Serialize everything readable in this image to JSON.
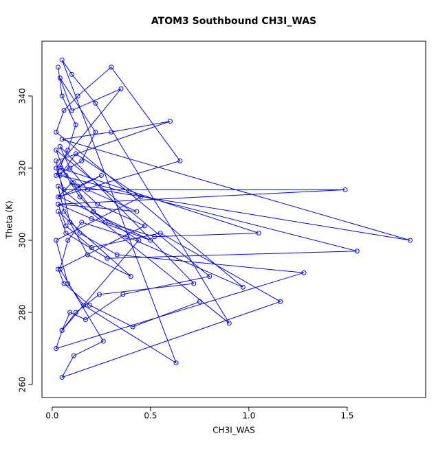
{
  "chart_data": {
    "type": "line",
    "title": "ATOM3 Southbound CH3I_WAS",
    "xlabel": "CH3I_WAS",
    "ylabel": "Theta (K)",
    "color": "#0000ff",
    "x": [
      0.03,
      0.05,
      0.12,
      0.08,
      0.02,
      0.15,
      0.22,
      0.04,
      0.1,
      0.35,
      0.02,
      0.06,
      1.49,
      0.03,
      0.2,
      0.5,
      0.04,
      0.25,
      0.13,
      1.82,
      0.05,
      0.3,
      0.6,
      0.02,
      0.09,
      0.18,
      0.4,
      0.03,
      0.07,
      0.28,
      1.55,
      0.04,
      0.12,
      0.45,
      0.02,
      0.08,
      0.16,
      0.63,
      0.05,
      0.1,
      0.22,
      0.9,
      0.03,
      0.06,
      0.14,
      0.33,
      1.28,
      0.02,
      0.05,
      0.12,
      0.24,
      0.72,
      0.04,
      0.09,
      0.18,
      0.43,
      0.03,
      0.07,
      0.2,
      0.55,
      1.16,
      0.05,
      0.11,
      0.26,
      0.04,
      0.08,
      0.15,
      0.38,
      0.97,
      0.02,
      0.06,
      0.13,
      0.3,
      0.65,
      0.03,
      0.1,
      0.21,
      0.44,
      0.05,
      0.09,
      0.17,
      0.36,
      0.8,
      0.02,
      0.07,
      0.14,
      0.27,
      0.52,
      1.05,
      0.04,
      0.11,
      0.23,
      0.47,
      0.03,
      0.06,
      0.19,
      0.41,
      0.75
    ],
    "values": [
      348,
      340,
      332,
      325,
      318,
      322,
      330,
      345,
      336,
      342,
      320,
      314,
      314,
      310,
      306,
      300,
      312,
      318,
      315,
      300,
      328,
      330,
      333,
      322,
      305,
      296,
      290,
      308,
      302,
      295,
      297,
      318,
      324,
      312,
      300,
      288,
      282,
      266,
      350,
      346,
      338,
      277,
      315,
      308,
      302,
      296,
      291,
      270,
      275,
      280,
      285,
      288,
      326,
      320,
      314,
      308,
      310,
      304,
      298,
      302,
      283,
      262,
      268,
      272,
      292,
      300,
      305,
      301,
      287,
      330,
      336,
      340,
      348,
      322,
      312,
      316,
      308,
      300,
      275,
      280,
      278,
      285,
      290,
      325,
      318,
      312,
      305,
      301,
      302,
      320,
      316,
      310,
      304,
      292,
      288,
      282,
      276,
      283
    ],
    "xlim": [
      -0.052,
      1.899
    ],
    "ylim": [
      256.4,
      355.2
    ],
    "xticks": [
      {
        "value": 0,
        "label": "0.0"
      },
      0.5,
      {
        "value": 1,
        "label": "1.0"
      },
      1.5
    ],
    "yticks": [
      260,
      280,
      300,
      320,
      340
    ]
  }
}
